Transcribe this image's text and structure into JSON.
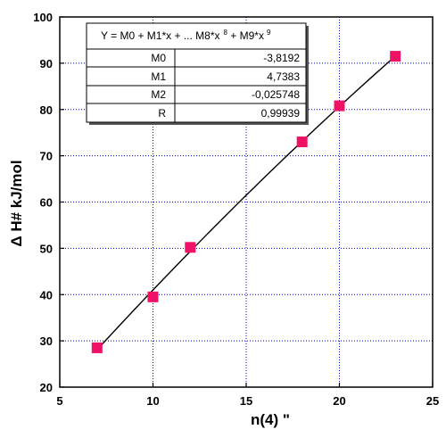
{
  "chart_data": {
    "type": "scatter",
    "title": "",
    "xlabel": "n(4) \"",
    "ylabel": "Δ H# kJ/mol",
    "xlim": [
      5,
      25
    ],
    "ylim": [
      20,
      100
    ],
    "xticks": [
      5,
      10,
      15,
      20,
      25
    ],
    "yticks": [
      20,
      30,
      40,
      50,
      60,
      70,
      80,
      90,
      100
    ],
    "grid": true,
    "marker_color": "#ee1166",
    "line_color": "#000000",
    "grid_color": "#0000cc",
    "series": [
      {
        "x": [
          7,
          10,
          12,
          18,
          20,
          23
        ],
        "y": [
          28.5,
          39.5,
          50.2,
          73.0,
          80.8,
          91.5
        ]
      }
    ],
    "fit": {
      "equation": "Y = M0 + M1*x + ... M8*x",
      "eq_exp1": "8",
      "eq_mid": " + M9*x",
      "eq_exp2": "9",
      "rows": [
        {
          "name": "M0",
          "value": "-3,8192"
        },
        {
          "name": "M1",
          "value": "4,7383"
        },
        {
          "name": "M2",
          "value": "-0,025748"
        },
        {
          "name": "R",
          "value": "0,99939"
        }
      ],
      "coefficients": [
        -3.8192,
        4.7383,
        -0.025748
      ],
      "x_range": [
        7,
        23
      ]
    }
  }
}
